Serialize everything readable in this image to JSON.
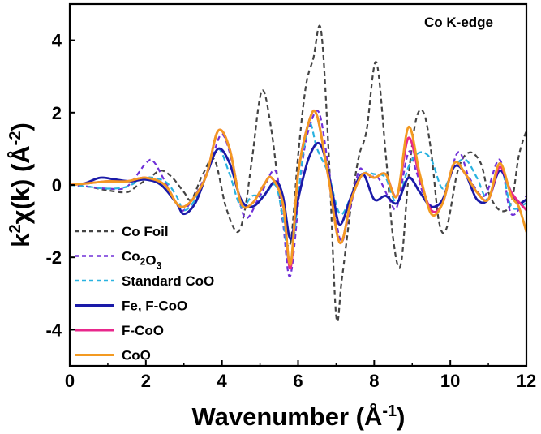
{
  "chart_data": {
    "type": "line",
    "title": "",
    "annotation": "Co K-edge",
    "xlabel": {
      "main": "Wavenumber (Å",
      "sup": "-1",
      "end": ")"
    },
    "ylabel": {
      "k": "k",
      "sup2": "2",
      "chi": "χ(k) (Å",
      "sup": "-2",
      "end": ")"
    },
    "xlim": [
      0,
      12
    ],
    "ylim": [
      -5,
      5
    ],
    "xticks": [
      0,
      2,
      4,
      6,
      8,
      10,
      12
    ],
    "yticks": [
      -4,
      -2,
      0,
      2,
      4
    ],
    "grid": false,
    "legend_position": "bottom-left",
    "series": [
      {
        "name": "Co Foil",
        "legend": [
          {
            "t": "Co Foil"
          }
        ],
        "color": "#444444",
        "dash": "6,4",
        "x": [
          0,
          0.5,
          1.0,
          1.5,
          1.8,
          2.1,
          2.4,
          2.7,
          3.0,
          3.2,
          3.5,
          3.8,
          4.1,
          4.4,
          4.6,
          4.8,
          5.05,
          5.3,
          5.6,
          5.8,
          6.0,
          6.2,
          6.4,
          6.6,
          6.8,
          7.0,
          7.15,
          7.4,
          7.6,
          7.8,
          8.05,
          8.3,
          8.5,
          8.7,
          8.9,
          9.1,
          9.3,
          9.5,
          9.7,
          9.9,
          10.2,
          10.5,
          10.8,
          11.0,
          11.3,
          11.6,
          11.8,
          12.0
        ],
        "y": [
          0,
          -0.05,
          -0.15,
          -0.2,
          0.0,
          0.2,
          0.4,
          0.2,
          -0.2,
          -0.4,
          0.3,
          0.7,
          -0.6,
          -1.3,
          -0.7,
          0.8,
          2.6,
          1.5,
          -1.0,
          -1.6,
          0.8,
          2.7,
          3.5,
          4.3,
          1.0,
          -3.6,
          -2.6,
          -0.5,
          0.8,
          1.5,
          3.4,
          0.9,
          -1.5,
          -2.2,
          0.2,
          1.8,
          2.0,
          0.9,
          -1.0,
          -1.2,
          0.4,
          0.9,
          0.6,
          -0.2,
          -0.7,
          -0.5,
          0.8,
          1.5
        ]
      },
      {
        "name": "Co2O3",
        "legend": [
          {
            "t": "Co"
          },
          {
            "t": "2",
            "sub": true
          },
          {
            "t": "O"
          },
          {
            "t": "3",
            "sub": true
          }
        ],
        "color": "#7030d8",
        "dash": "6,4",
        "x": [
          0,
          0.5,
          1.0,
          1.5,
          2.0,
          2.2,
          2.5,
          2.8,
          3.0,
          3.4,
          3.7,
          4.0,
          4.3,
          4.6,
          5.0,
          5.4,
          5.6,
          5.8,
          6.1,
          6.3,
          6.55,
          6.8,
          7.1,
          7.3,
          7.6,
          7.8,
          8.1,
          8.4,
          8.6,
          8.9,
          9.1,
          9.4,
          9.8,
          10.2,
          10.5,
          10.9,
          11.3,
          11.6,
          12.0
        ],
        "y": [
          0,
          -0.05,
          -0.1,
          -0.05,
          0.6,
          0.65,
          0.1,
          -0.5,
          -0.7,
          -0.1,
          0.6,
          1.4,
          0.5,
          -0.9,
          -0.3,
          0.4,
          -1.0,
          -2.5,
          0.5,
          1.6,
          2.0,
          0.5,
          -1.5,
          -1.0,
          0.4,
          0.2,
          0.2,
          -0.4,
          -0.6,
          0.9,
          0.4,
          -0.5,
          -0.4,
          0.9,
          0.2,
          -0.3,
          0.7,
          -0.8,
          -0.3
        ]
      },
      {
        "name": "Standard CoO",
        "legend": [
          {
            "t": "Standard CoO"
          }
        ],
        "color": "#29b2e0",
        "dash": "7,4",
        "x": [
          0,
          0.5,
          1.0,
          1.5,
          2.0,
          2.5,
          2.8,
          3.0,
          3.3,
          3.6,
          3.9,
          4.2,
          4.5,
          4.8,
          5.1,
          5.4,
          5.6,
          5.8,
          6.1,
          6.3,
          6.5,
          6.8,
          7.1,
          7.4,
          7.7,
          8.0,
          8.3,
          8.6,
          8.9,
          9.2,
          9.5,
          9.8,
          10.1,
          10.4,
          10.7,
          11.0,
          11.3,
          11.6,
          12.0
        ],
        "y": [
          0,
          -0.05,
          -0.1,
          -0.05,
          0.2,
          0.1,
          -0.3,
          -0.7,
          -0.4,
          0.3,
          1.0,
          0.3,
          -0.6,
          -0.3,
          -0.3,
          0.0,
          -0.9,
          -2.1,
          0.6,
          1.7,
          1.0,
          0.3,
          -0.8,
          -0.3,
          0.3,
          0.3,
          0.2,
          -0.5,
          0.5,
          0.9,
          0.7,
          -0.1,
          0.5,
          0.7,
          0.2,
          -0.4,
          0.6,
          -0.6,
          -0.5
        ]
      },
      {
        "name": "Fe, F-CoO",
        "legend": [
          {
            "t": "Fe, F-CoO"
          }
        ],
        "color": "#1a1aa8",
        "dash": "",
        "x": [
          0,
          0.4,
          0.8,
          1.2,
          1.6,
          2.0,
          2.4,
          2.8,
          3.0,
          3.3,
          3.6,
          3.9,
          4.2,
          4.5,
          4.8,
          5.1,
          5.4,
          5.6,
          5.8,
          6.0,
          6.3,
          6.6,
          6.9,
          7.1,
          7.4,
          7.7,
          8.0,
          8.3,
          8.6,
          8.9,
          9.2,
          9.5,
          9.8,
          10.1,
          10.4,
          10.7,
          11.0,
          11.3,
          11.6,
          11.8,
          12.0
        ],
        "y": [
          0,
          0.05,
          0.2,
          0.15,
          0.1,
          0.15,
          0.0,
          -0.5,
          -0.8,
          -0.5,
          0.3,
          1.0,
          0.6,
          -0.4,
          -0.6,
          -0.3,
          0.1,
          -0.3,
          -1.5,
          -0.4,
          0.8,
          1.1,
          -0.2,
          -1.1,
          -0.3,
          0.3,
          -0.4,
          -0.3,
          -0.5,
          0.2,
          -0.2,
          -0.6,
          -0.4,
          0.5,
          0.3,
          -0.4,
          -0.4,
          0.4,
          -0.2,
          -0.5,
          -0.4
        ]
      },
      {
        "name": "F-CoO",
        "legend": [
          {
            "t": "F-CoO"
          }
        ],
        "color": "#e8288c",
        "dash": "",
        "x": [
          0,
          0.5,
          1.0,
          1.5,
          2.0,
          2.5,
          2.8,
          3.0,
          3.3,
          3.6,
          3.9,
          4.2,
          4.5,
          4.8,
          5.1,
          5.3,
          5.6,
          5.8,
          6.0,
          6.3,
          6.5,
          6.8,
          7.1,
          7.4,
          7.7,
          8.0,
          8.3,
          8.6,
          8.9,
          9.2,
          9.5,
          9.8,
          10.1,
          10.4,
          10.7,
          11.0,
          11.3,
          11.6,
          12.0
        ],
        "y": [
          0,
          0.05,
          0.1,
          0.1,
          0.2,
          0.0,
          -0.5,
          -0.6,
          -0.3,
          0.3,
          1.5,
          1.0,
          -0.5,
          -0.5,
          0.0,
          0.2,
          -0.5,
          -2.3,
          0.3,
          1.8,
          1.9,
          0.2,
          -1.6,
          -0.4,
          0.3,
          0.2,
          0.3,
          -0.3,
          1.3,
          0.2,
          -0.7,
          -0.5,
          0.6,
          0.3,
          -0.2,
          -0.4,
          0.5,
          -0.2,
          -0.7
        ]
      },
      {
        "name": "CoO",
        "legend": [
          {
            "t": "CoO"
          }
        ],
        "color": "#f39a21",
        "dash": "",
        "x": [
          0,
          0.5,
          1.0,
          1.5,
          2.0,
          2.5,
          2.8,
          3.0,
          3.3,
          3.6,
          3.9,
          4.2,
          4.5,
          4.8,
          5.1,
          5.3,
          5.6,
          5.8,
          6.0,
          6.3,
          6.5,
          6.8,
          7.1,
          7.4,
          7.7,
          8.0,
          8.3,
          8.6,
          8.9,
          9.2,
          9.5,
          9.8,
          10.1,
          10.4,
          10.7,
          11.0,
          11.3,
          11.6,
          11.8,
          12.0
        ],
        "y": [
          0,
          0.05,
          0.1,
          0.1,
          0.2,
          0.0,
          -0.5,
          -0.6,
          -0.3,
          0.3,
          1.5,
          1.0,
          -0.5,
          -0.5,
          0.0,
          0.2,
          -0.5,
          -2.2,
          0.3,
          1.8,
          1.9,
          0.2,
          -1.6,
          -0.4,
          0.3,
          0.2,
          0.3,
          -0.3,
          1.6,
          0.3,
          -0.8,
          -0.5,
          0.6,
          0.3,
          -0.2,
          -0.4,
          0.6,
          -0.3,
          -0.6,
          -1.3
        ]
      }
    ]
  }
}
